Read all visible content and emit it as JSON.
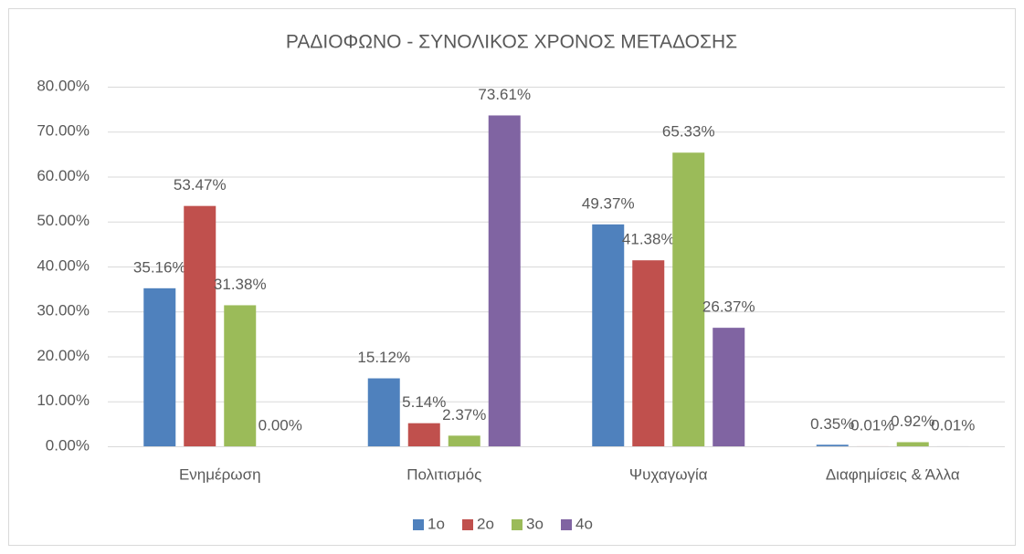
{
  "chart_data": {
    "type": "bar",
    "title": "ΡΑΔΙΟΦΩΝΟ - ΣΥΝΟΛΙΚΟΣ ΧΡΟΝΟΣ ΜΕΤΑΔΟΣΗΣ",
    "categories": [
      "Ενημέρωση",
      "Πολιτισμός",
      "Ψυχαγωγία",
      "Διαφημίσεις & Άλλα"
    ],
    "series": [
      {
        "name": "1ο",
        "color": "#4f81bd",
        "values": [
          35.16,
          15.12,
          49.37,
          0.35
        ],
        "value_labels": [
          "35.16%",
          "15.12%",
          "49.37%",
          "0.35%"
        ]
      },
      {
        "name": "2ο",
        "color": "#c0504d",
        "values": [
          53.47,
          5.14,
          41.38,
          0.01
        ],
        "value_labels": [
          "53.47%",
          "5.14%",
          "41.38%",
          "0.01%"
        ]
      },
      {
        "name": "3ο",
        "color": "#9bbb59",
        "values": [
          31.38,
          2.37,
          65.33,
          0.92
        ],
        "value_labels": [
          "31.38%",
          "2.37%",
          "65.33%",
          "0.92%"
        ]
      },
      {
        "name": "4ο",
        "color": "#8064a2",
        "values": [
          0.0,
          73.61,
          26.37,
          0.01
        ],
        "value_labels": [
          "0.00%",
          "73.61%",
          "26.37%",
          "0.01%"
        ]
      }
    ],
    "ylim": [
      0,
      80
    ],
    "yticks": [
      {
        "value": 0,
        "label": "0.00%"
      },
      {
        "value": 10,
        "label": "10.00%"
      },
      {
        "value": 20,
        "label": "20.00%"
      },
      {
        "value": 30,
        "label": "30.00%"
      },
      {
        "value": 40,
        "label": "40.00%"
      },
      {
        "value": 50,
        "label": "50.00%"
      },
      {
        "value": 60,
        "label": "60.00%"
      },
      {
        "value": 70,
        "label": "70.00%"
      },
      {
        "value": 80,
        "label": "80.00%"
      }
    ],
    "grid": true,
    "legend": "bottom"
  }
}
